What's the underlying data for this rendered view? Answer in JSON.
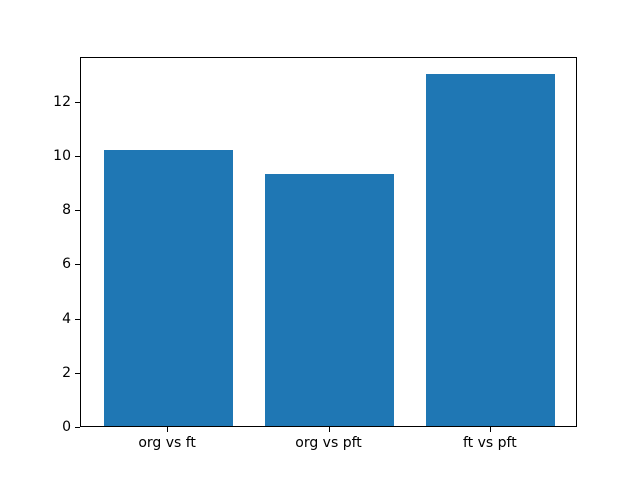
{
  "figure": {
    "background": "#ffffff",
    "title": ""
  },
  "chart_data": {
    "type": "bar",
    "categories": [
      "org vs ft",
      "org vs pft",
      "ft vs pft"
    ],
    "values": [
      10.2,
      9.3,
      13.0
    ],
    "title": "",
    "xlabel": "",
    "ylabel": "",
    "ylim": [
      0,
      13.65
    ],
    "yticks": [
      0,
      2,
      4,
      6,
      8,
      10,
      12
    ],
    "ytick_labels": [
      "0",
      "2",
      "4",
      "6",
      "8",
      "10",
      "12"
    ],
    "xlim": [
      -0.54,
      2.54
    ],
    "bar_width_fraction": 0.8,
    "bar_color": "#1f77b4",
    "spine_color": "#000000",
    "tick_color": "#000000",
    "grid": false,
    "legend": null
  }
}
